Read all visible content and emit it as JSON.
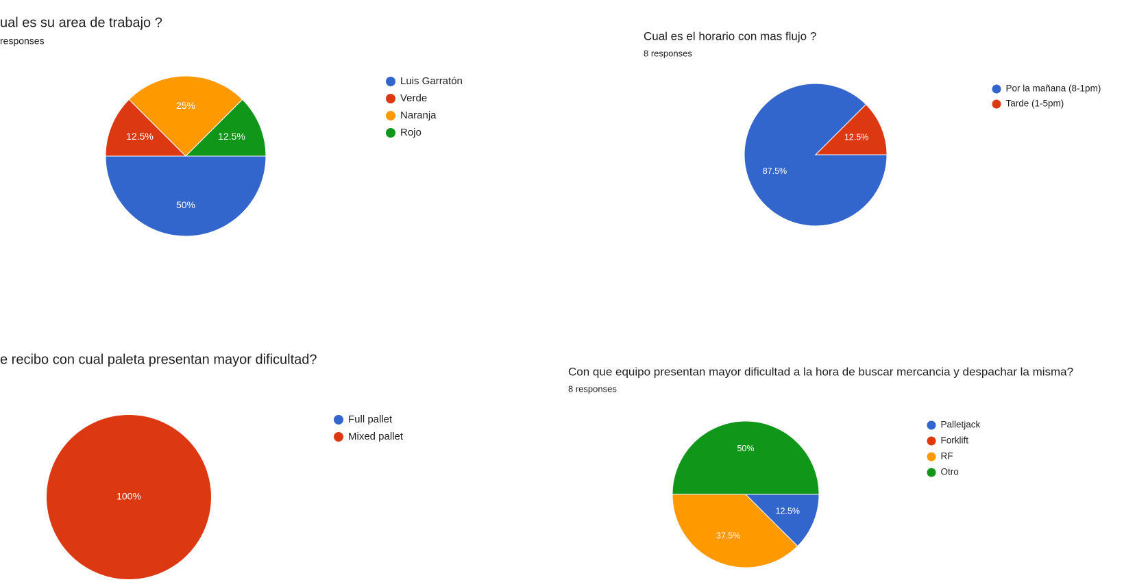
{
  "chart_data": [
    {
      "type": "pie",
      "title": "ual es su area de trabajo ?",
      "subtitle": "responses",
      "categories": [
        "Luis Garratón",
        "Verde",
        "Naranja",
        "Rojo"
      ],
      "values": [
        50,
        12.5,
        25,
        12.5
      ],
      "value_labels": [
        "50%",
        "12.5%",
        "25%",
        "12.5%"
      ],
      "colors": [
        "#3366cc",
        "#dc3912",
        "#ff9900",
        "#109618"
      ]
    },
    {
      "type": "pie",
      "title": "Cual es el horario con mas flujo ?",
      "subtitle": "8 responses",
      "categories": [
        "Por la mañana (8-1pm)",
        "Tarde (1-5pm)"
      ],
      "values": [
        87.5,
        12.5
      ],
      "value_labels": [
        "87.5%",
        "12.5%"
      ],
      "colors": [
        "#3366cc",
        "#dc3912"
      ]
    },
    {
      "type": "pie",
      "title": "e recibo con cual paleta presentan mayor dificultad?",
      "categories": [
        "Full pallet",
        "Mixed pallet"
      ],
      "values": [
        0,
        100
      ],
      "value_labels": [
        null,
        "100%"
      ],
      "colors": [
        "#3366cc",
        "#dc3912"
      ]
    },
    {
      "type": "pie",
      "title": "Con que equipo presentan mayor dificultad a la hora de buscar mercancia y despachar la misma?",
      "subtitle": "8 responses",
      "categories": [
        "Palletjack",
        "Forklift",
        "RF",
        "Otro"
      ],
      "values": [
        12.5,
        0,
        37.5,
        50
      ],
      "value_labels": [
        "12.5%",
        null,
        "37.5%",
        "50%"
      ],
      "colors": [
        "#3366cc",
        "#dc3912",
        "#ff9900",
        "#109618"
      ]
    }
  ]
}
